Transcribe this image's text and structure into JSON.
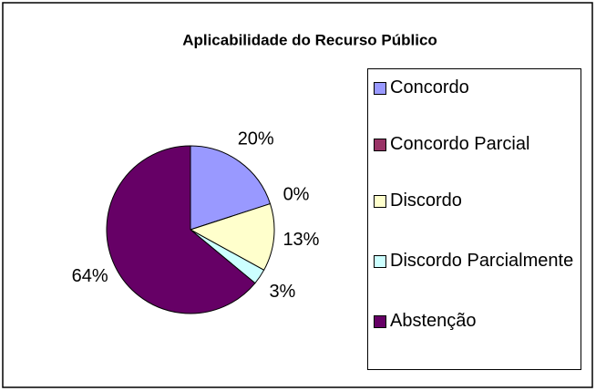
{
  "chart_data": {
    "type": "pie",
    "title": "Aplicabilidade do Recurso Público",
    "categories": [
      "Concordo",
      "Concordo Parcial",
      "Discordo",
      "Discordo Parcialmente",
      "Abstenção"
    ],
    "values": [
      20,
      0,
      13,
      3,
      64
    ],
    "value_labels": [
      "20%",
      "0%",
      "13%",
      "3%",
      "64%"
    ],
    "colors": [
      "#9999ff",
      "#993366",
      "#ffffcc",
      "#ccffff",
      "#660066"
    ]
  }
}
